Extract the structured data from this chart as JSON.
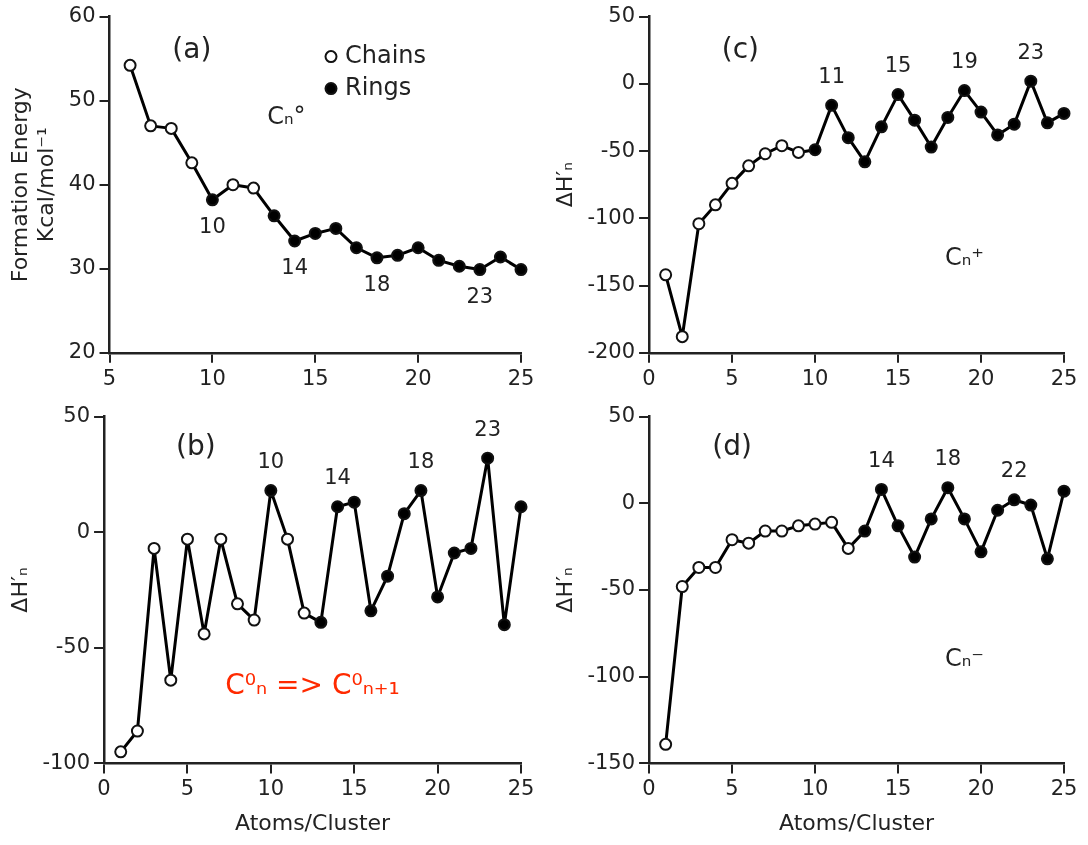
{
  "chart_data": [
    {
      "type": "line",
      "ylabel": "Formation Energy\nKcal/mol⁻¹",
      "xlim": [
        5,
        25
      ],
      "xticks": [
        5,
        10,
        15,
        20,
        25
      ],
      "ylim": [
        20,
        60
      ],
      "yticks": [
        20,
        30,
        40,
        50,
        60
      ],
      "legend": "top right",
      "annotations": [
        "(a)",
        "Cₙ°",
        {
          "text": "10",
          "x": 10,
          "y": 38.2
        },
        {
          "text": "14",
          "x": 14,
          "y": 33.3
        },
        {
          "text": "18",
          "x": 18,
          "y": 31.3
        },
        {
          "text": "23",
          "x": 23,
          "y": 29.9
        }
      ],
      "series": [
        {
          "marker": "none",
          "color": "#000000",
          "x": [
            6,
            7,
            8,
            9,
            10,
            11,
            12,
            13,
            14,
            15,
            16,
            17,
            18,
            19,
            20,
            21,
            22,
            23,
            24,
            25
          ],
          "values": [
            54.2,
            47.0,
            46.7,
            42.6,
            38.2,
            40.0,
            39.6,
            36.3,
            33.3,
            34.2,
            34.8,
            32.5,
            31.3,
            31.6,
            32.5,
            31.0,
            30.3,
            29.9,
            31.4,
            29.9
          ]
        },
        {
          "type": "scatter",
          "name": "Chains",
          "marker": "circle",
          "color": "#ffffff",
          "x": [
            6,
            7,
            8,
            9,
            11,
            12
          ],
          "values": [
            54.2,
            47.0,
            46.7,
            42.6,
            40.0,
            39.6
          ]
        },
        {
          "type": "scatter",
          "name": "Rings",
          "marker": "circle",
          "color": "#000000",
          "x": [
            10,
            13,
            14,
            15,
            16,
            17,
            18,
            19,
            20,
            21,
            22,
            23,
            24,
            25
          ],
          "values": [
            38.2,
            36.3,
            33.3,
            34.2,
            34.8,
            32.5,
            31.3,
            31.6,
            32.5,
            31.0,
            30.3,
            29.9,
            31.4,
            29.9
          ]
        }
      ]
    },
    {
      "type": "line",
      "ylabel": "ΔH′ₙ",
      "xlim": [
        0,
        25
      ],
      "xticks": [
        0,
        5,
        10,
        15,
        20,
        25
      ],
      "ylim": [
        -200,
        50
      ],
      "yticks": [
        -200,
        -150,
        -100,
        -50,
        0,
        50
      ],
      "annotations": [
        "(c)",
        "Cₙ⁺",
        {
          "text": "11",
          "x": 11,
          "y": -16
        },
        {
          "text": "15",
          "x": 15,
          "y": -8
        },
        {
          "text": "19",
          "x": 19,
          "y": -5
        },
        {
          "text": "23",
          "x": 23,
          "y": 2
        }
      ],
      "series": [
        {
          "marker": "none",
          "color": "#000000",
          "x": [
            1,
            2,
            3,
            4,
            5,
            6,
            7,
            8,
            9,
            10,
            11,
            12,
            13,
            14,
            15,
            16,
            17,
            18,
            19,
            20,
            21,
            22,
            23,
            24,
            25
          ],
          "values": [
            -142,
            -188,
            -104,
            -90,
            -74,
            -61,
            -52,
            -46,
            -51,
            -49,
            -16,
            -40,
            -58,
            -32,
            -8,
            -27,
            -47,
            -25,
            -5,
            -21,
            -38,
            -30,
            2,
            -29,
            -22
          ]
        },
        {
          "type": "scatter",
          "marker": "circle",
          "color": "#ffffff",
          "x": [
            1,
            2,
            3,
            4,
            5,
            6,
            7,
            8,
            9
          ],
          "values": [
            -142,
            -188,
            -104,
            -90,
            -74,
            -61,
            -52,
            -46,
            -51
          ]
        },
        {
          "type": "scatter",
          "marker": "circle",
          "color": "#000000",
          "x": [
            10,
            11,
            12,
            13,
            14,
            15,
            16,
            17,
            18,
            19,
            20,
            21,
            22,
            23,
            24,
            25
          ],
          "values": [
            -49,
            -16,
            -40,
            -58,
            -32,
            -8,
            -27,
            -47,
            -25,
            -5,
            -21,
            -38,
            -30,
            2,
            -29,
            -22
          ]
        }
      ]
    },
    {
      "type": "line",
      "ylabel": "ΔH′ₙ",
      "xlabel": "Atoms/Cluster",
      "xlim": [
        0,
        25
      ],
      "xticks": [
        0,
        5,
        10,
        15,
        20,
        25
      ],
      "ylim": [
        -100,
        50
      ],
      "yticks": [
        -100,
        -50,
        0,
        50
      ],
      "annotations": [
        "(b)",
        "C⁰ₙ => C⁰ₙ₊₁",
        {
          "text": "10",
          "x": 10,
          "y": 18
        },
        {
          "text": "14",
          "x": 14,
          "y": 11
        },
        {
          "text": "18",
          "x": 19,
          "y": 18
        },
        {
          "text": "23",
          "x": 23,
          "y": 32
        }
      ],
      "series": [
        {
          "marker": "none",
          "color": "#000000",
          "x": [
            1,
            2,
            3,
            4,
            5,
            6,
            7,
            8,
            9,
            10,
            11,
            12,
            13,
            14,
            15,
            16,
            17,
            18,
            19,
            20,
            21,
            22,
            23,
            24,
            25
          ],
          "values": [
            -95,
            -86,
            -7,
            -64,
            -3,
            -44,
            -3,
            -31,
            -38,
            18,
            -3,
            -35,
            -39,
            11,
            13,
            -34,
            -19,
            8,
            18,
            -28,
            -9,
            -7,
            32,
            -40,
            11
          ]
        },
        {
          "type": "scatter",
          "marker": "circle",
          "color": "#ffffff",
          "x": [
            1,
            2,
            3,
            4,
            5,
            6,
            7,
            8,
            9,
            11,
            12
          ],
          "values": [
            -95,
            -86,
            -7,
            -64,
            -3,
            -44,
            -3,
            -31,
            -38,
            -3,
            -35
          ]
        },
        {
          "type": "scatter",
          "marker": "circle",
          "color": "#000000",
          "x": [
            10,
            13,
            14,
            15,
            16,
            17,
            18,
            19,
            20,
            21,
            22,
            23,
            24,
            25
          ],
          "values": [
            18,
            -39,
            11,
            13,
            -34,
            -19,
            8,
            18,
            -28,
            -9,
            -7,
            32,
            -40,
            11
          ]
        }
      ]
    },
    {
      "type": "line",
      "ylabel": "ΔH′ₙ",
      "xlabel": "Atoms/Cluster",
      "xlim": [
        0,
        25
      ],
      "xticks": [
        0,
        5,
        10,
        15,
        20,
        25
      ],
      "ylim": [
        -150,
        50
      ],
      "yticks": [
        -150,
        -100,
        -50,
        0,
        50
      ],
      "annotations": [
        "(d)",
        "Cₙ⁻",
        {
          "text": "14",
          "x": 14,
          "y": 8
        },
        {
          "text": "18",
          "x": 18,
          "y": 9
        },
        {
          "text": "22",
          "x": 22,
          "y": 2
        }
      ],
      "series": [
        {
          "marker": "none",
          "color": "#000000",
          "x": [
            1,
            2,
            3,
            4,
            5,
            6,
            7,
            8,
            9,
            10,
            11,
            12,
            13,
            14,
            15,
            16,
            17,
            18,
            19,
            20,
            21,
            22,
            23,
            24,
            25
          ],
          "values": [
            -139,
            -48,
            -37,
            -37,
            -21,
            -23,
            -16,
            -16,
            -13,
            -12,
            -11,
            -26,
            -16,
            8,
            -13,
            -31,
            -9,
            9,
            -9,
            -28,
            -4,
            2,
            -1,
            -32,
            7
          ]
        },
        {
          "type": "scatter",
          "marker": "circle",
          "color": "#ffffff",
          "x": [
            1,
            2,
            3,
            4,
            5,
            6,
            7,
            8,
            9,
            10,
            11,
            12
          ],
          "values": [
            -139,
            -48,
            -37,
            -37,
            -21,
            -23,
            -16,
            -16,
            -13,
            -12,
            -11,
            -26
          ]
        },
        {
          "type": "scatter",
          "marker": "circle",
          "color": "#000000",
          "x": [
            13,
            14,
            15,
            16,
            17,
            18,
            19,
            20,
            21,
            22,
            23,
            24,
            25
          ],
          "values": [
            -16,
            8,
            -13,
            -31,
            -9,
            9,
            -9,
            -28,
            -4,
            2,
            -1,
            -32,
            7
          ]
        }
      ]
    }
  ]
}
